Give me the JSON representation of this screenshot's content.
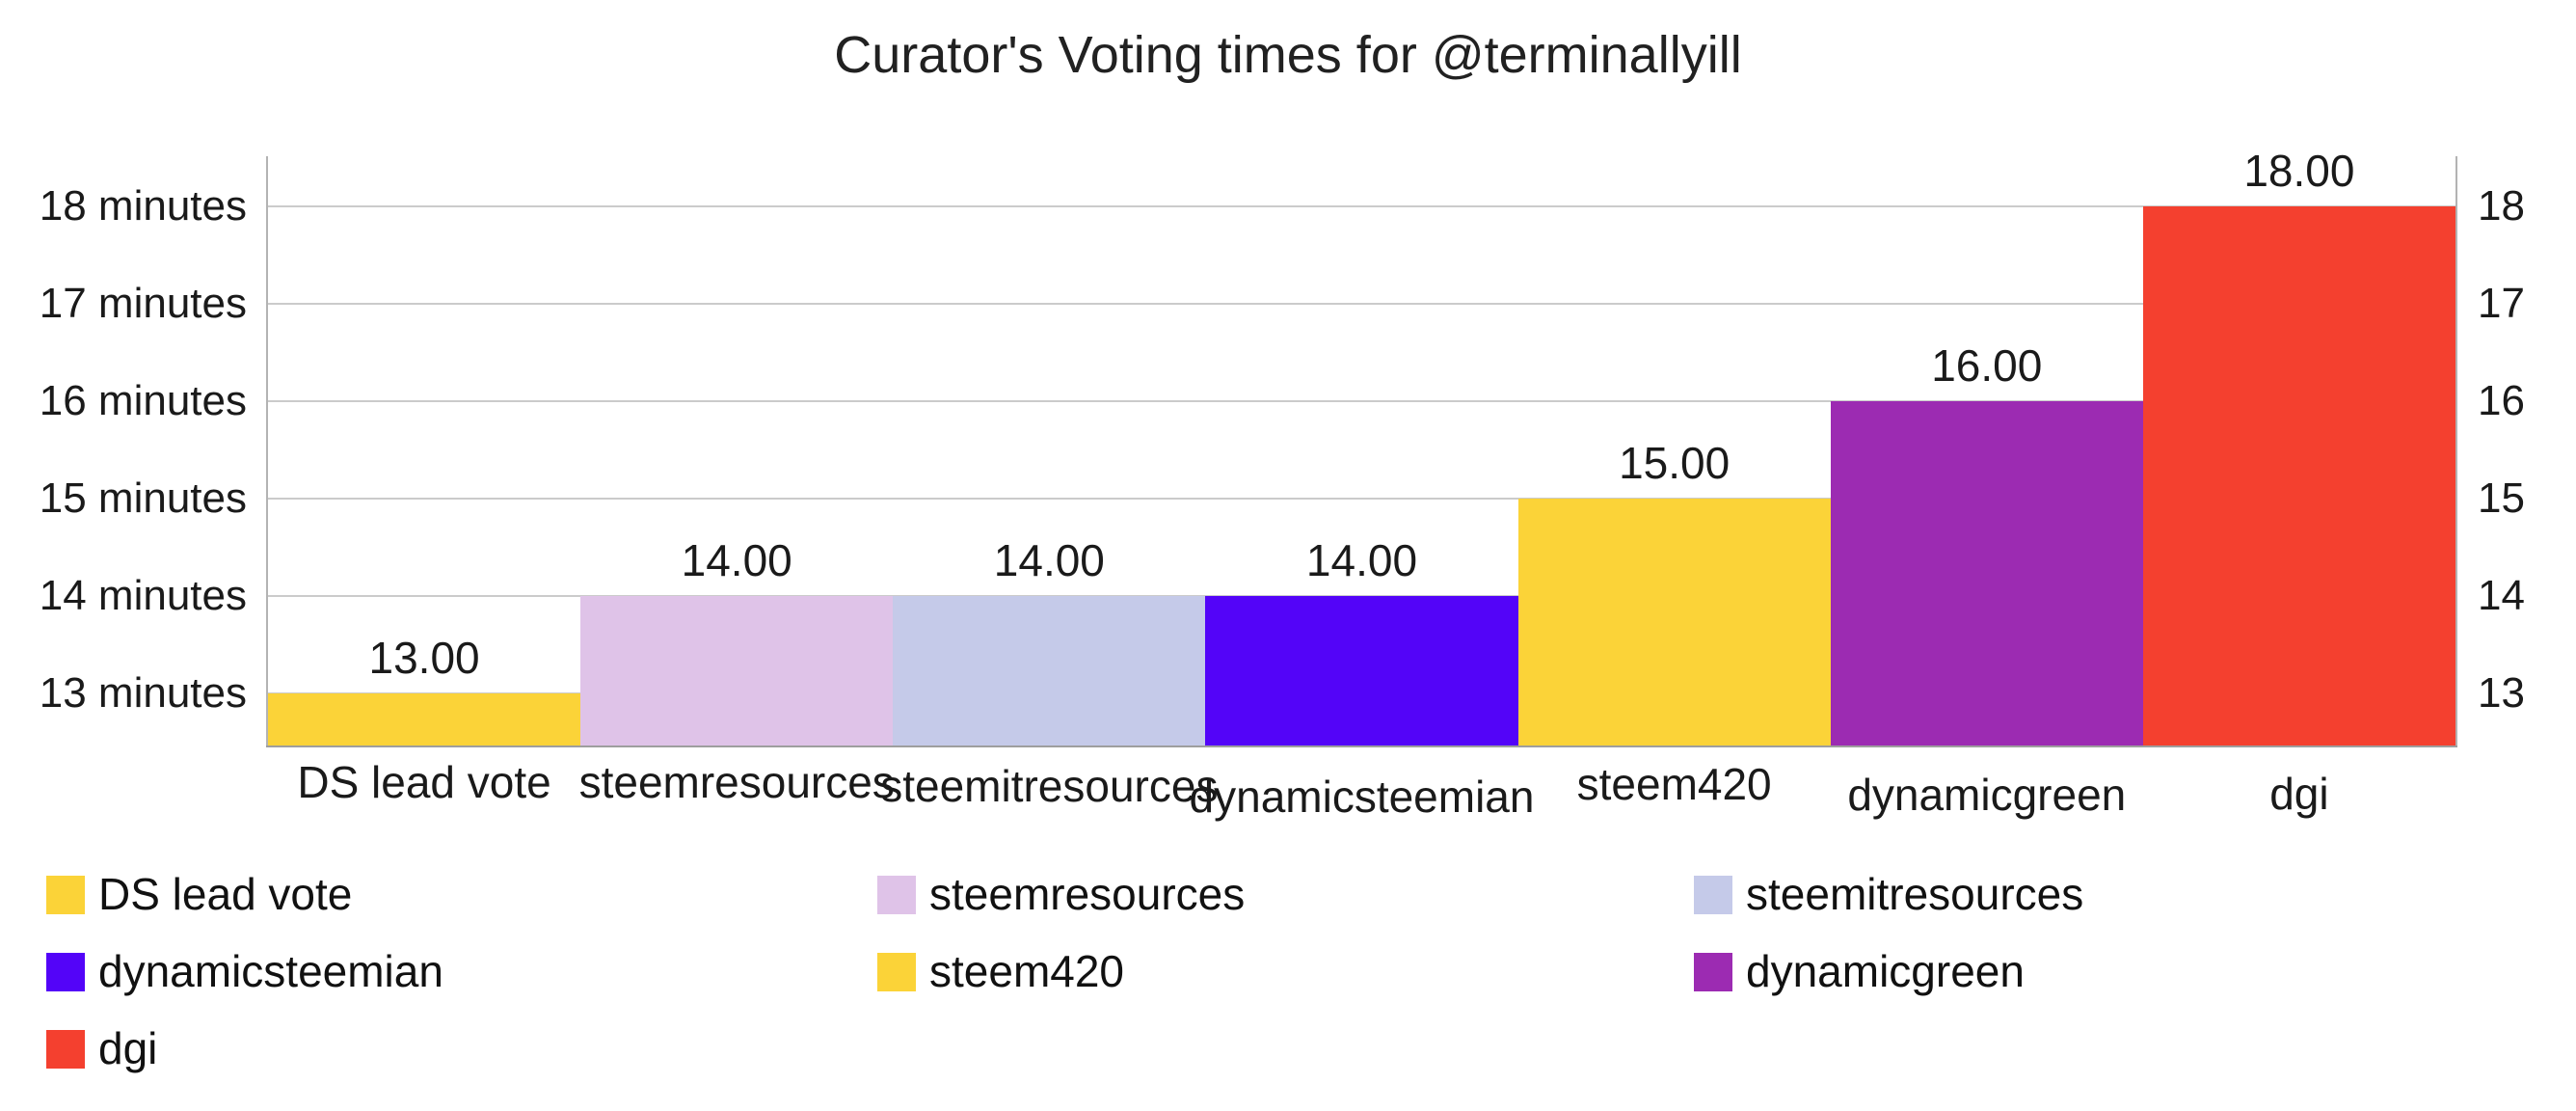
{
  "title": "Curator's Voting times for @terminallyill",
  "chart_data": {
    "type": "bar",
    "title": "Curator's Voting times for @terminallyill",
    "categories": [
      "DS lead vote",
      "steemresources",
      "steemitresources",
      "dynamicsteemian",
      "steem420",
      "dynamicgreen",
      "dgi"
    ],
    "values": [
      13,
      14,
      14,
      14,
      15,
      16,
      18
    ],
    "value_labels": [
      "13.00",
      "14.00",
      "14.00",
      "14.00",
      "15.00",
      "16.00",
      "18.00"
    ],
    "bar_colors": [
      "#FBD338",
      "#DFC3E8",
      "#C5CAE9",
      "#5304F8",
      "#FBD338",
      "#9C2BB2",
      "#F4402F"
    ],
    "y_ticks": [
      {
        "value": 18,
        "left_label": "18 minutes",
        "right_label": "18"
      },
      {
        "value": 17,
        "left_label": "17 minutes",
        "right_label": "17"
      },
      {
        "value": 16,
        "left_label": "16 minutes",
        "right_label": "16"
      },
      {
        "value": 15,
        "left_label": "15 minutes",
        "right_label": "15"
      },
      {
        "value": 14,
        "left_label": "14 minutes",
        "right_label": "14"
      },
      {
        "value": 13,
        "left_label": "13 minutes",
        "right_label": "13"
      }
    ],
    "ylim": [
      12.45,
      18.52
    ],
    "grid": true,
    "legend_position": "bottom"
  },
  "legend": {
    "items": [
      {
        "label": "DS lead vote",
        "color": "#FBD338"
      },
      {
        "label": "steemresources",
        "color": "#DFC3E8"
      },
      {
        "label": "steemitresources",
        "color": "#C5CAE9"
      },
      {
        "label": "dynamicsteemian",
        "color": "#5304F8"
      },
      {
        "label": "steem420",
        "color": "#FBD338"
      },
      {
        "label": "dynamicgreen",
        "color": "#9C2BB2"
      },
      {
        "label": "dgi",
        "color": "#F4402F"
      }
    ]
  },
  "colors": {
    "background": "#FFFFFF",
    "gridline": "#CBCBCB",
    "axis_line": "#B3B3B3",
    "baseline": "#9E9E9E",
    "text": "#1A1A1A"
  }
}
